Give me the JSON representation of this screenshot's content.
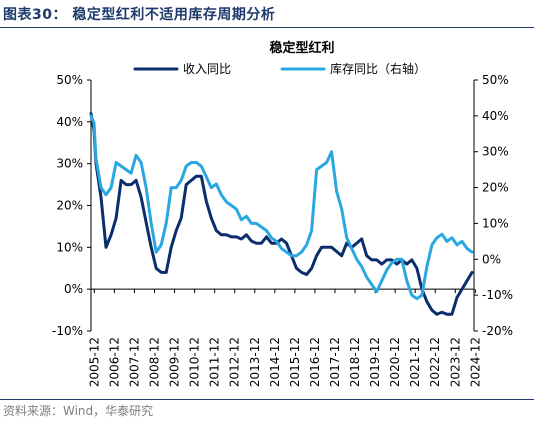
{
  "figure": {
    "label": "图表30：",
    "caption": "稳定型红利不适用库存周期分析",
    "source": "资料来源：Wind，华泰研究"
  },
  "colors": {
    "revenue": "#0b2d6b",
    "inventory": "#2aa7e1",
    "axis": "#000000",
    "header_rule": "#1d3a6b",
    "source_text": "#7f7f7f"
  },
  "chart_data": {
    "type": "line",
    "title": "稳定型红利",
    "legend_position": "top",
    "grid": false,
    "x_ticks": [
      "2005-12",
      "2006-12",
      "2007-12",
      "2008-12",
      "2009-12",
      "2010-12",
      "2011-12",
      "2012-12",
      "2013-12",
      "2014-12",
      "2015-12",
      "2016-12",
      "2017-12",
      "2018-12",
      "2019-12",
      "2020-12",
      "2021-12",
      "2022-12",
      "2023-12",
      "2024-12"
    ],
    "y_left": {
      "ticks": [
        "-10%",
        "0%",
        "10%",
        "20%",
        "30%",
        "40%",
        "50%"
      ],
      "ylim": [
        -10,
        50
      ]
    },
    "y_right": {
      "ticks": [
        "-20%",
        "-10%",
        "0%",
        "10%",
        "20%",
        "30%",
        "40%",
        "50%"
      ],
      "ylim": [
        -20,
        50
      ]
    },
    "series": [
      {
        "name": "收入同比",
        "axis": "left",
        "x": [
          2005.75,
          2005.9,
          2006.0,
          2006.25,
          2006.5,
          2006.75,
          2007.0,
          2007.25,
          2007.5,
          2007.75,
          2008.0,
          2008.25,
          2008.5,
          2008.75,
          2009.0,
          2009.25,
          2009.5,
          2009.75,
          2010.0,
          2010.25,
          2010.5,
          2010.75,
          2011.0,
          2011.25,
          2011.5,
          2011.75,
          2012.0,
          2012.25,
          2012.5,
          2012.75,
          2013.0,
          2013.25,
          2013.5,
          2013.75,
          2014.0,
          2014.25,
          2014.5,
          2014.75,
          2015.0,
          2015.25,
          2015.5,
          2015.75,
          2016.0,
          2016.25,
          2016.5,
          2016.75,
          2017.0,
          2017.25,
          2017.5,
          2017.75,
          2018.0,
          2018.25,
          2018.5,
          2018.75,
          2019.0,
          2019.25,
          2019.5,
          2019.75,
          2020.0,
          2020.25,
          2020.5,
          2020.75,
          2021.0,
          2021.25,
          2021.5,
          2021.75,
          2022.0,
          2022.25,
          2022.5,
          2022.75,
          2023.0,
          2023.25,
          2023.5,
          2023.75,
          2024.0,
          2024.25,
          2024.5,
          2024.75
        ],
        "values": [
          42,
          38,
          30,
          22,
          10,
          13,
          17,
          26,
          25,
          25,
          26,
          22,
          16,
          10,
          5,
          4,
          4,
          10,
          14,
          17,
          25,
          26,
          27,
          27,
          21,
          17,
          14,
          13,
          13,
          12.5,
          12.5,
          12,
          13,
          11.5,
          11,
          11,
          12.5,
          11,
          11,
          12,
          11,
          8,
          5,
          4,
          3.5,
          5,
          8,
          10,
          10,
          10,
          9,
          8,
          11,
          10,
          11,
          12,
          8,
          7,
          7,
          6,
          7,
          7,
          6,
          7,
          6,
          7,
          5,
          0,
          -3,
          -5,
          -6,
          -5.5,
          -6,
          -6,
          -2,
          0,
          2,
          4
        ]
      },
      {
        "name": "库存同比（右轴）",
        "axis": "right",
        "x": [
          2005.75,
          2005.9,
          2006.0,
          2006.25,
          2006.5,
          2006.75,
          2007.0,
          2007.25,
          2007.5,
          2007.75,
          2008.0,
          2008.25,
          2008.5,
          2008.75,
          2009.0,
          2009.25,
          2009.5,
          2009.75,
          2010.0,
          2010.25,
          2010.5,
          2010.75,
          2011.0,
          2011.25,
          2011.5,
          2011.75,
          2012.0,
          2012.25,
          2012.5,
          2012.75,
          2013.0,
          2013.25,
          2013.5,
          2013.75,
          2014.0,
          2014.25,
          2014.5,
          2014.75,
          2015.0,
          2015.25,
          2015.5,
          2015.75,
          2016.0,
          2016.25,
          2016.5,
          2016.75,
          2017.0,
          2017.25,
          2017.5,
          2017.75,
          2018.0,
          2018.25,
          2018.5,
          2018.75,
          2019.0,
          2019.25,
          2019.5,
          2019.75,
          2020.0,
          2020.25,
          2020.5,
          2020.75,
          2021.0,
          2021.25,
          2021.5,
          2021.75,
          2022.0,
          2022.25,
          2022.5,
          2022.75,
          2023.0,
          2023.25,
          2023.5,
          2023.75,
          2024.0,
          2024.25,
          2024.5,
          2024.75
        ],
        "values": [
          40,
          38,
          28,
          20,
          18,
          20,
          27,
          26,
          25,
          24,
          29,
          27,
          20,
          10,
          2,
          4,
          10,
          20,
          20,
          22,
          26,
          27,
          27,
          26,
          23,
          20,
          21,
          18,
          16,
          15,
          14,
          11,
          12,
          10,
          10,
          9,
          8,
          6,
          5,
          3,
          2,
          1,
          1,
          2,
          4,
          8,
          25,
          26,
          27,
          30,
          19,
          14,
          6,
          3,
          0,
          -2,
          -5,
          -7,
          -9,
          -6,
          -3,
          -1,
          0,
          0,
          -6,
          -10,
          -11,
          -10,
          -2,
          4,
          6,
          7,
          5,
          6,
          4,
          5,
          3,
          2
        ]
      }
    ]
  }
}
